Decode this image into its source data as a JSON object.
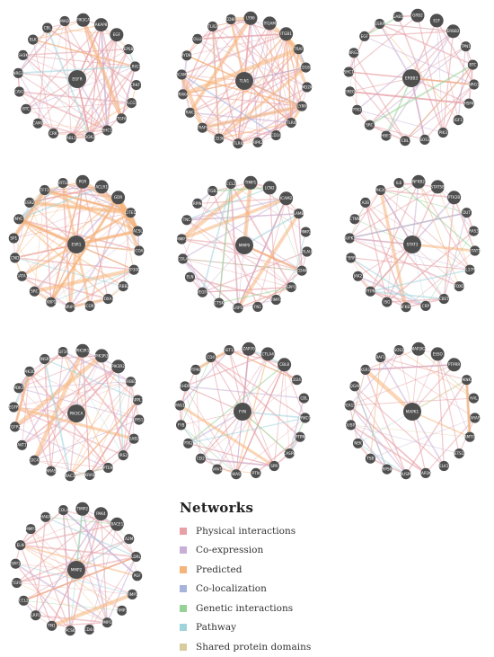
{
  "networks": [
    {
      "id": "egfr",
      "center": "EGFR",
      "nodes": [
        "PIK3CA",
        "AKAP8",
        "EGF",
        "EPS8",
        "LRIG1",
        "CRKF1",
        "PLCG1",
        "TGFA",
        "SHC1",
        "DOK2",
        "ABL1",
        "CRK",
        "CAML",
        "BTC",
        "CAV2",
        "NRG1",
        "SH3K",
        "BLK",
        "CBL",
        "SMAD1"
      ],
      "edges": {
        "Physical interactions": 60,
        "Co-expression": 10,
        "Predicted": 10,
        "Pathway": 4
      }
    },
    {
      "id": "tln1",
      "center": "TLN1",
      "nodes": [
        "LY96",
        "ITGAM",
        "ITGB1",
        "TRAF",
        "CD180",
        "MD2K",
        "LY86",
        "TLR4",
        "CD14",
        "RIPK2",
        "TLR6",
        "CD36",
        "TRAF6",
        "IRAK1",
        "IRAK4",
        "TICAM2",
        "MYD88",
        "TOLLIP",
        "TLR2",
        "CD80"
      ],
      "edges": {
        "Physical interactions": 70,
        "Co-expression": 12,
        "Predicted": 30,
        "Co-localization": 4
      }
    },
    {
      "id": "erbb3",
      "center": "ERBB3",
      "nodes": [
        "GRB2",
        "E2F",
        "ERBB2",
        "PTPN11",
        "BTC",
        "NRG1",
        "HSP4",
        "IGF1",
        "PIK3",
        "SOS1",
        "CBL",
        "HBE1",
        "SRC",
        "PTK2",
        "EREG",
        "SHC1",
        "NRG2",
        "EGF",
        "ESRP",
        "GAB1"
      ],
      "edges": {
        "Physical interactions": 40,
        "Co-expression": 14,
        "Predicted": 4,
        "Genetic interactions": 3
      }
    },
    {
      "id": "esr1",
      "center": "ESR1",
      "nodes": [
        "PGR",
        "ACLR1",
        "GDR",
        "CITED",
        "ACSL",
        "NCOA1",
        "EP300",
        "ERBB2",
        "FOXA1",
        "NCOR1",
        "NRIP1",
        "XBP1",
        "SRC",
        "GATA3",
        "CCND1",
        "SP1",
        "MYC",
        "ESR2",
        "TFF1",
        "KRT18"
      ],
      "edges": {
        "Physical interactions": 40,
        "Co-expression": 14,
        "Predicted": 45,
        "Pathway": 6
      }
    },
    {
      "id": "mmp9",
      "center": "MMP9",
      "nodes": [
        "TIMP1",
        "LCN2",
        "ICAM2",
        "LAMB",
        "MMP2",
        "PLAU",
        "CD44",
        "SPP1",
        "TIMP3",
        "FN1",
        "LRP1",
        "CTSK",
        "VEGFA",
        "ELN",
        "COL4",
        "MMP1",
        "TNC",
        "SERPINE1",
        "ITGB3",
        "CCL2"
      ],
      "edges": {
        "Physical interactions": 40,
        "Co-expression": 16,
        "Predicted": 6,
        "Genetic interactions": 5,
        "Pathway": 4
      }
    },
    {
      "id": "stat3",
      "center": "STAT3",
      "nodes": [
        "NFKB2",
        "STAT5B",
        "PTK2B",
        "DUT",
        "RAS3",
        "STAT1",
        "IL17R",
        "FOXO",
        "CBST",
        "CRP",
        "NFKB1",
        "ISG",
        "PTPN",
        "JAK2",
        "FERR",
        "SUFK1",
        "CTNN",
        "A2B",
        "PIK3C",
        "IL6"
      ],
      "edges": {
        "Physical interactions": 40,
        "Co-expression": 10,
        "Predicted": 6,
        "Genetic interactions": 5,
        "Pathway": 5
      }
    },
    {
      "id": "pik3ca",
      "center": "PIK3CA",
      "nodes": [
        "PIK3R1",
        "PIK3R3",
        "PIK3R2",
        "ERBB3",
        "APPL1",
        "IRS1",
        "GAB2",
        "IRS2",
        "PTEN",
        "KRAS",
        "RAC1",
        "NRAS",
        "CDC42",
        "AKT1",
        "FGFR2",
        "EGFR",
        "PDK1",
        "PIK3C",
        "INSR",
        "IGF1R"
      ],
      "edges": {
        "Physical interactions": 50,
        "Co-expression": 12,
        "Predicted": 10,
        "Pathway": 6
      }
    },
    {
      "id": "fyn",
      "center": "FYN",
      "nodes": [
        "ZAP70",
        "CTLA4",
        "CBL8",
        "CD247",
        "CBL",
        "PRKCQ",
        "PTPN",
        "CASP8",
        "SPR",
        "PTN",
        "WAS",
        "VAV1",
        "CD2",
        "PTK2",
        "FYB",
        "PAG1",
        "KHDR",
        "PTPRC",
        "CD4",
        "SIT1"
      ],
      "edges": {
        "Physical interactions": 45,
        "Co-expression": 12,
        "Predicted": 6,
        "Genetic interactions": 5,
        "Pathway": 4
      }
    },
    {
      "id": "mapk1",
      "center": "MAPK1",
      "nodes": [
        "MAP2K2",
        "ESSO",
        "PTPRR",
        "MKNK2",
        "HAL",
        "ARAF",
        "LAMTOR",
        "ETS1",
        "ELK1",
        "MAP2K1",
        "DUSP6",
        "RPS6",
        "TSB",
        "NEK",
        "DUSP1",
        "PEA15",
        "IQGAP",
        "KSR1",
        "RAF1",
        "SOS1"
      ],
      "edges": {
        "Physical interactions": 30,
        "Co-expression": 10,
        "Predicted": 6,
        "Shared protein domains": 4,
        "Pathway": 3
      }
    },
    {
      "id": "mmp2",
      "center": "MMP2",
      "nodes": [
        "TIMP2",
        "PAK4",
        "BACE1",
        "A2M",
        "LDRL",
        "PGF",
        "TIMP1",
        "TIMP3",
        "MMP14",
        "CD44",
        "PCSK",
        "FN1",
        "LRP1",
        "CCL2",
        "TGFB",
        "SPP1",
        "ELN",
        "MMP1",
        "HAKA",
        "COL4"
      ],
      "edges": {
        "Physical interactions": 40,
        "Co-expression": 10,
        "Predicted": 6,
        "Genetic interactions": 4,
        "Pathway": 4
      }
    }
  ],
  "legend": {
    "title": "Networks",
    "items": [
      {
        "label": "Physical interactions",
        "color": "#e8a0a6"
      },
      {
        "label": "Co-expression",
        "color": "#c9aed6"
      },
      {
        "label": "Predicted",
        "color": "#f5b57a"
      },
      {
        "label": "Co-localization",
        "color": "#a7b3dc"
      },
      {
        "label": "Genetic interactions",
        "color": "#96d196"
      },
      {
        "label": "Pathway",
        "color": "#9ed4db"
      },
      {
        "label": "Shared protein domains",
        "color": "#d8cc9c"
      }
    ]
  }
}
